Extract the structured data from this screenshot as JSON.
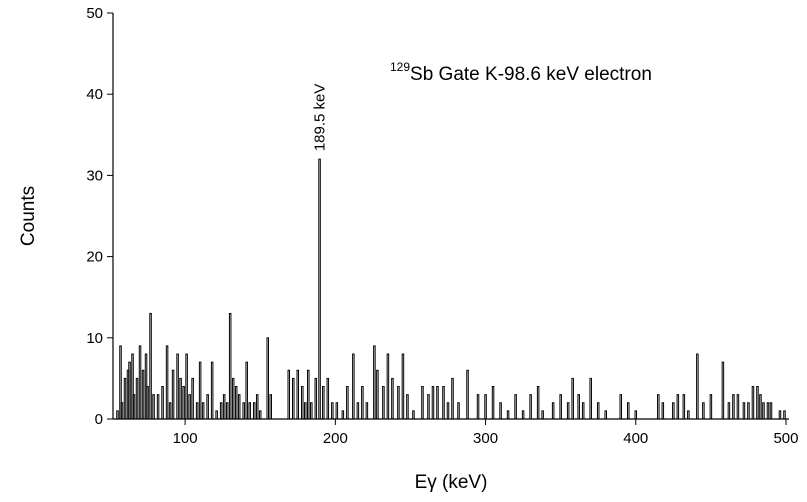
{
  "chart_data": {
    "type": "spectrum",
    "ylabel": "Counts",
    "xlabel": "Eγ (keV)",
    "annotation": {
      "superscript": "129",
      "text": "Sb Gate K-98.6 keV electron"
    },
    "peak_label": "189.5 keV",
    "color": "#000000",
    "xlim": [
      52,
      502
    ],
    "xticks": [
      100,
      200,
      300,
      400,
      500
    ],
    "ylim": [
      0,
      50
    ],
    "yticks": [
      0,
      10,
      20,
      30,
      40,
      50
    ],
    "x": [
      55,
      57,
      58,
      60,
      62,
      63,
      65,
      66,
      68,
      70,
      72,
      74,
      75,
      77,
      79,
      82,
      85,
      88,
      90,
      92,
      95,
      97,
      99,
      101,
      103,
      105,
      108,
      110,
      112,
      115,
      118,
      121,
      124,
      126,
      128,
      130,
      132,
      134,
      136,
      139,
      141,
      143,
      146,
      148,
      150,
      155,
      157,
      169,
      172,
      175,
      178,
      180,
      182,
      184,
      187,
      189.5,
      192,
      195,
      198,
      201,
      205,
      208,
      212,
      215,
      218,
      221,
      226,
      228,
      232,
      235,
      238,
      242,
      245,
      248,
      252,
      258,
      262,
      265,
      268,
      272,
      275,
      278,
      282,
      288,
      295,
      300,
      305,
      310,
      315,
      320,
      325,
      330,
      335,
      338,
      345,
      350,
      355,
      358,
      362,
      365,
      370,
      375,
      380,
      390,
      395,
      400,
      415,
      418,
      425,
      428,
      432,
      435,
      441,
      445,
      450,
      458,
      462,
      465,
      468,
      472,
      475,
      478,
      481,
      483,
      485,
      488,
      490,
      496,
      499
    ],
    "values": [
      1,
      9,
      2,
      5,
      6,
      7,
      8,
      3,
      5,
      9,
      6,
      8,
      4,
      13,
      3,
      3,
      4,
      9,
      2,
      6,
      8,
      5,
      4,
      8,
      3,
      5,
      2,
      7,
      2,
      3,
      7,
      1,
      2,
      3,
      2,
      13,
      5,
      4,
      3,
      2,
      7,
      2,
      2,
      3,
      1,
      10,
      3,
      6,
      5,
      6,
      4,
      2,
      6,
      2,
      5,
      32,
      4,
      5,
      2,
      2,
      1,
      4,
      8,
      2,
      4,
      2,
      9,
      6,
      4,
      8,
      5,
      4,
      8,
      3,
      1,
      4,
      3,
      4,
      4,
      4,
      2,
      5,
      2,
      6,
      3,
      3,
      4,
      2,
      1,
      3,
      1,
      3,
      4,
      1,
      2,
      3,
      2,
      5,
      3,
      2,
      5,
      2,
      1,
      3,
      2,
      1,
      3,
      2,
      2,
      3,
      3,
      1,
      8,
      2,
      3,
      7,
      2,
      3,
      3,
      2,
      2,
      4,
      4,
      3,
      2,
      2,
      2,
      1,
      1
    ]
  }
}
